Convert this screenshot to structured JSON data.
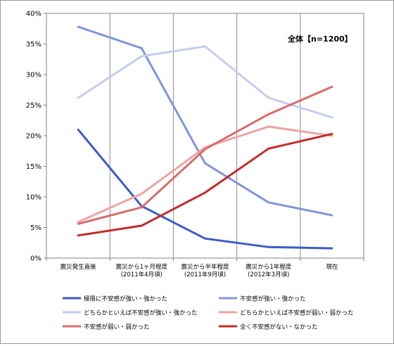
{
  "chart_data": {
    "type": "line",
    "title": "",
    "annotation": "全体【n=1200】",
    "xlabel": "",
    "ylabel": "",
    "ylim": [
      0,
      40
    ],
    "yticks": [
      "0%",
      "5%",
      "10%",
      "15%",
      "20%",
      "25%",
      "30%",
      "35%",
      "40%"
    ],
    "categories": [
      [
        "震災発生直後"
      ],
      [
        "震災から1ヶ月程度",
        "(2011年4月頃)"
      ],
      [
        "震災から半年程度",
        "(2011年9月頃)"
      ],
      [
        "震災から1年程度",
        "(2012年3月頃)"
      ],
      [
        "現在"
      ]
    ],
    "grid": "vertical category separators",
    "legend_position": "bottom",
    "series": [
      {
        "name": "極限に不安感が強い・強かった",
        "color": "#3a5bc7",
        "values": [
          21.0,
          8.5,
          3.2,
          1.8,
          1.6
        ]
      },
      {
        "name": "不安感が強い・強かった",
        "color": "#7f95d8",
        "values": [
          37.8,
          34.3,
          15.5,
          9.1,
          7.0
        ]
      },
      {
        "name": "どちらかといえば不安感が強い・強かった",
        "color": "#c5cdee",
        "values": [
          26.2,
          33.0,
          34.6,
          26.2,
          23.0
        ]
      },
      {
        "name": "どちらかといえば不安感が弱い・弱かった",
        "color": "#eca4a4",
        "values": [
          5.9,
          10.5,
          18.1,
          21.5,
          20.0
        ]
      },
      {
        "name": "不安感が弱い・弱かった",
        "color": "#d96a6a",
        "values": [
          5.6,
          8.3,
          17.8,
          23.5,
          28.0
        ]
      },
      {
        "name": "全く不安感がない・なかった",
        "color": "#c42a2a",
        "values": [
          3.7,
          5.3,
          10.7,
          17.9,
          20.3
        ]
      }
    ]
  }
}
